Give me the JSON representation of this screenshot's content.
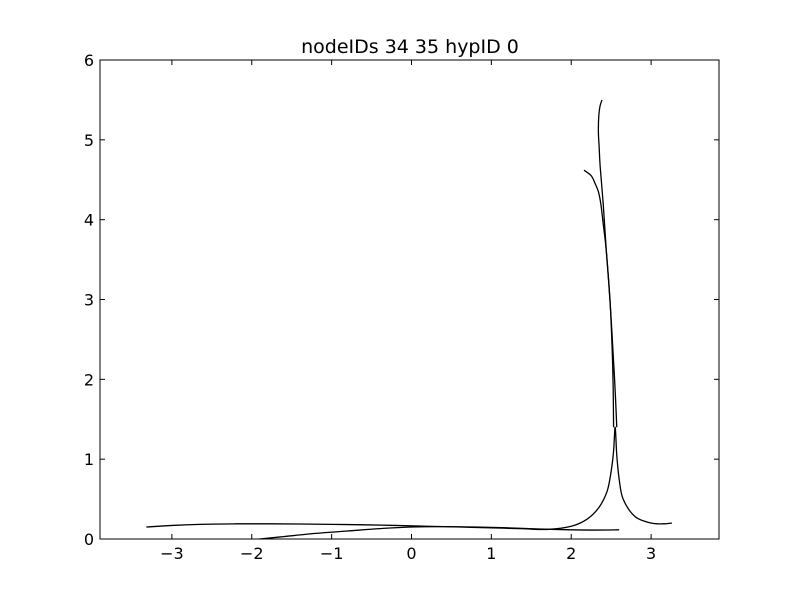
{
  "chart_data": {
    "type": "line",
    "title": "nodeIDs 34 35 hypID 0",
    "xlabel": "",
    "ylabel": "",
    "xlim": [
      -3.9,
      3.85
    ],
    "ylim": [
      0,
      6
    ],
    "x_ticks": [
      -3,
      -2,
      -1,
      0,
      1,
      2,
      3
    ],
    "x_tick_labels": [
      "−3",
      "−2",
      "−1",
      "0",
      "1",
      "2",
      "3"
    ],
    "y_ticks": [
      0,
      1,
      2,
      3,
      4,
      5,
      6
    ],
    "y_tick_labels": [
      "0",
      "1",
      "2",
      "3",
      "4",
      "5",
      "6"
    ],
    "grid": false,
    "line_color": "#000000",
    "series": [
      {
        "x": [
          -3.32,
          -3.0,
          -2.6,
          -2.2,
          -1.8,
          -1.4,
          -1.0,
          -0.6,
          -0.2,
          0.2,
          0.6,
          1.0,
          1.4,
          1.7,
          2.0,
          2.2,
          2.35,
          2.45,
          2.5,
          2.53,
          2.55,
          2.57,
          2.6,
          2.65,
          2.8,
          3.0,
          3.15,
          3.26
        ],
        "y": [
          0.15,
          0.17,
          0.185,
          0.19,
          0.19,
          0.188,
          0.183,
          0.178,
          0.17,
          0.16,
          0.15,
          0.14,
          0.128,
          0.12,
          0.16,
          0.25,
          0.4,
          0.6,
          0.85,
          1.1,
          1.4,
          1.05,
          0.75,
          0.5,
          0.28,
          0.2,
          0.19,
          0.2
        ]
      },
      {
        "x": [
          -1.9,
          -1.6,
          -1.2,
          -0.8,
          -0.4,
          0.0,
          0.4,
          0.8,
          1.2,
          1.6,
          2.0,
          2.3,
          2.6
        ],
        "y": [
          0.0,
          0.03,
          0.07,
          0.1,
          0.13,
          0.15,
          0.155,
          0.15,
          0.14,
          0.125,
          0.115,
          0.112,
          0.115
        ]
      },
      {
        "x": [
          2.53,
          2.525,
          2.515,
          2.5,
          2.485,
          2.46,
          2.43,
          2.4,
          2.37,
          2.34,
          2.3,
          2.25,
          2.16
        ],
        "y": [
          1.4,
          1.9,
          2.3,
          2.7,
          3.0,
          3.35,
          3.7,
          3.95,
          4.2,
          4.35,
          4.45,
          4.55,
          4.62
        ]
      },
      {
        "x": [
          2.57,
          2.555,
          2.54,
          2.52,
          2.5,
          2.47,
          2.44,
          2.42,
          2.4,
          2.38,
          2.36,
          2.35,
          2.34,
          2.345,
          2.36,
          2.385
        ],
        "y": [
          1.4,
          1.75,
          2.05,
          2.4,
          2.75,
          3.2,
          3.6,
          3.9,
          4.2,
          4.45,
          4.7,
          4.9,
          5.1,
          5.3,
          5.42,
          5.5
        ]
      }
    ]
  }
}
